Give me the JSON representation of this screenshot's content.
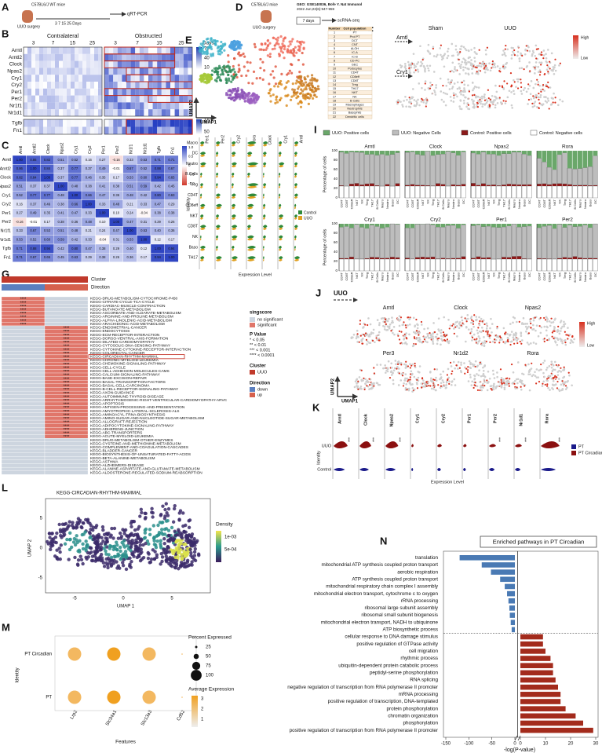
{
  "panel_labels": [
    "A",
    "B",
    "C",
    "D",
    "E",
    "F",
    "G",
    "H",
    "I",
    "J",
    "K",
    "L",
    "M",
    "N"
  ],
  "a": {
    "mice": "C57BL6/J WT mice",
    "surgery": "UUO surgery",
    "assay": "qRT-PCR",
    "timeline": "3   7   15   25 Days"
  },
  "b": {
    "groups": [
      "Contralateral",
      "Obstructed"
    ],
    "days": [
      "3",
      "7",
      "15",
      "25"
    ],
    "days_label": "Days",
    "genes": [
      "Arntl",
      "Arntl2",
      "Clock",
      "Npas2",
      "Cry1",
      "Cry2",
      "Per1",
      "Per2",
      "Nr1f1",
      "Nr1d1",
      "Tgfb",
      "Fn1"
    ],
    "scale_top": [
      "70",
      "40",
      "10"
    ],
    "scale_bottom": [
      "150",
      "50"
    ]
  },
  "c": {
    "genes": [
      "Arntl",
      "Arntl2",
      "Clock",
      "Npas2",
      "Cry1",
      "Cry2",
      "Per1",
      "Per2",
      "Nr1f1",
      "Nr1d1",
      "Tgfb",
      "Fn1"
    ],
    "matrix": [
      [
        "1.00",
        "0.86",
        "0.82",
        "0.51",
        "0.52",
        "0.16",
        "0.27",
        "-0.16",
        "0.33",
        "0.53",
        "0.71",
        "0.71"
      ],
      [
        "0.86",
        "1.00",
        "0.84",
        "0.37",
        "0.77",
        "0.37",
        "0.49",
        "-0.01",
        "0.67",
        "0.52",
        "0.88",
        "0.67"
      ],
      [
        "0.82",
        "0.84",
        "1.00",
        "0.37",
        "0.77",
        "0.46",
        "0.35",
        "0.17",
        "0.53",
        "0.60",
        "0.94",
        "0.65"
      ],
      [
        "0.51",
        "0.37",
        "0.37",
        "1.00",
        "0.48",
        "0.38",
        "0.41",
        "0.38",
        "0.51",
        "0.59",
        "0.42",
        "0.45"
      ],
      [
        "0.52",
        "0.77",
        "0.77",
        "0.48",
        "1.00",
        "0.66",
        "0.47",
        "0.36",
        "0.48",
        "0.42",
        "0.80",
        "0.63"
      ],
      [
        "0.16",
        "0.37",
        "0.46",
        "0.38",
        "0.66",
        "1.00",
        "0.33",
        "0.48",
        "0.21",
        "0.33",
        "0.47",
        "0.29"
      ],
      [
        "0.27",
        "0.49",
        "0.35",
        "0.41",
        "0.47",
        "0.33",
        "1.00",
        "0.10",
        "0.24",
        "-0.04",
        "0.38",
        "0.38"
      ],
      [
        "-0.16",
        "-0.01",
        "0.17",
        "0.38",
        "0.36",
        "0.48",
        "0.10",
        "1.00",
        "0.47",
        "0.31",
        "0.29",
        "0.26"
      ],
      [
        "0.33",
        "0.67",
        "0.53",
        "0.51",
        "0.48",
        "0.21",
        "0.24",
        "0.47",
        "1.00",
        "0.53",
        "0.40",
        "0.36"
      ],
      [
        "0.53",
        "0.52",
        "0.60",
        "0.59",
        "0.42",
        "0.33",
        "-0.04",
        "0.31",
        "0.53",
        "1.00",
        "0.12",
        "0.17"
      ],
      [
        "0.71",
        "0.88",
        "0.94",
        "0.42",
        "0.80",
        "0.47",
        "0.38",
        "0.29",
        "0.40",
        "0.12",
        "1.00",
        "0.94"
      ],
      [
        "0.71",
        "0.67",
        "0.65",
        "0.45",
        "0.63",
        "0.29",
        "0.38",
        "0.26",
        "0.36",
        "0.17",
        "0.94",
        "1.00"
      ]
    ],
    "scale": [
      "1.0",
      "0.5",
      "0",
      "-0.5",
      "-1.0"
    ]
  },
  "d": {
    "mice": "C57BL6/J mice",
    "geo": "GEO: GSE140036, Bofe Y. Nat Immunol",
    "geo2": "2022 Jun;23(6):947-959",
    "surgery": "UUO surgery",
    "duration": "7 days",
    "assay": "scRNA-seq"
  },
  "e": {
    "axis_x": "UMAP1",
    "axis_y": "UMAP2",
    "table_head": [
      "Number",
      "Cell population"
    ],
    "table": [
      [
        "1",
        "PT"
      ],
      [
        "2",
        "Prol PT"
      ],
      [
        "3",
        "DCT"
      ],
      [
        "4",
        "CNT"
      ],
      [
        "5",
        "ALOH"
      ],
      [
        "6",
        "IC-A"
      ],
      [
        "7",
        "IC-B"
      ],
      [
        "8",
        "CD-PC"
      ],
      [
        "9",
        "GEC"
      ],
      [
        "10",
        "Podocytes"
      ],
      [
        "11",
        "CD4T"
      ],
      [
        "12",
        "CD8eff"
      ],
      [
        "13",
        "CD8T"
      ],
      [
        "14",
        "Treg"
      ],
      [
        "15",
        "TH17"
      ],
      [
        "16",
        "NKT"
      ],
      [
        "17",
        "NK"
      ],
      [
        "18",
        "B Cells"
      ],
      [
        "19",
        "Macrophages"
      ],
      [
        "20",
        "Neutrophils"
      ],
      [
        "21",
        "Basophils"
      ],
      [
        "22",
        "Dendritic cells"
      ]
    ]
  },
  "f": {
    "conditions": [
      "Sham",
      "UUO"
    ],
    "genes": [
      "Arntl",
      "Cry1"
    ],
    "scale": [
      "High",
      "Low"
    ]
  },
  "g": {
    "cluster": "Cluster",
    "direction": "Direction",
    "rows": [
      {
        "pathway": "KEGG-DRUG-METABOLISM-CYTOCHROME-P450",
        "down": "****"
      },
      {
        "pathway": "KEGG-CITRATE-CYCLE-TCA-CYCLE",
        "down": "****"
      },
      {
        "pathway": "KEGG-CARDIAC-MUSCLE-CONTRACTION",
        "down": "****"
      },
      {
        "pathway": "KEGG-BUTANOATE-METABOLISM",
        "down": "****"
      },
      {
        "pathway": "KEGG-ASCORBATE-AND-ALDARATE-METABOLISM",
        "down": "****"
      },
      {
        "pathway": "KEGG-ARGININE-AND-PROLINE-METABOLISM",
        "down": "****"
      },
      {
        "pathway": "KEGG-ALPHA-LINOLENIC-ACID-METABOLISM",
        "down": "****"
      },
      {
        "pathway": "KEGG-ARACHIDONIC-ACID-METABOLISM",
        "down": "****"
      },
      {
        "pathway": "KEGG-ENDOMETRIAL-CANCER",
        "up": "****"
      },
      {
        "pathway": "KEGG-ENDOCYTOSIS",
        "up": "****"
      },
      {
        "pathway": "KEGG-ECM-RECEPTOR-INTERACTION",
        "up": "****"
      },
      {
        "pathway": "KEGG-DORSO-VENTRAL-AXIS-FORMATION",
        "up": "****"
      },
      {
        "pathway": "KEGG-DILATED-CARDIOMYOPATHY",
        "up": "****"
      },
      {
        "pathway": "KEGG-CYTOSOLIC-DNA-SENSING-PATHWAY",
        "up": "****"
      },
      {
        "pathway": "KEGG-CYTOKINE-CYTOKINE-RECEPTOR-INTERACTION",
        "up": "****"
      },
      {
        "pathway": "KEGG-COLORECTAL-CANCER",
        "up": "****"
      },
      {
        "pathway": "KEGG-CIRCADIAN-RHYTHM-MAMMAL",
        "up": "****"
      },
      {
        "pathway": "KEGG-CHRONIC-MYELOID-LEUKEMIA",
        "up": "****"
      },
      {
        "pathway": "KEGG-CHEMOKINE-SIGNALING-PATHWAY",
        "up": "****"
      },
      {
        "pathway": "KEGG-CELL-CYCLE",
        "up": "****"
      },
      {
        "pathway": "KEGG-CELL-ADHESION-MOLECULES-CAMS",
        "up": "****"
      },
      {
        "pathway": "KEGG-CALCIUM-SIGNALING-PATHWAY",
        "up": "****"
      },
      {
        "pathway": "KEGG-BASE-EXCISION-REPAIR",
        "up": "****"
      },
      {
        "pathway": "KEGG-BASAL-TRANSCRIPTION-FACTORS",
        "up": "****"
      },
      {
        "pathway": "KEGG-BASAL-CELL-CARCINOMA",
        "up": "****"
      },
      {
        "pathway": "KEGG-B-CELL-RECEPTOR-SIGNALING-PATHWAY",
        "up": "****"
      },
      {
        "pathway": "KEGG-AXON-GUIDANCE",
        "up": "****"
      },
      {
        "pathway": "KEGG-AUTOIMMUNE-THYROID-DISEASE",
        "up": "****"
      },
      {
        "pathway": "KEGG-ARRHYTHMOGENIC-RIGHT-VENTRICULAR-CARDIOMYOPATHY-ARVC",
        "up": "****"
      },
      {
        "pathway": "KEGG-APOPTOSIS",
        "up": "****"
      },
      {
        "pathway": "KEGG-ANTIGEN-PROCESSING-AND-PRESENTATION",
        "up": "****"
      },
      {
        "pathway": "KEGG-AMYOTROPHIC-LATERAL-SCLEROSIS-ALS",
        "up": "****"
      },
      {
        "pathway": "KEGG-AMINOACYL-TRNA-BIOSYNTHESIS",
        "up": "****"
      },
      {
        "pathway": "KEGG-AMINO-SUGAR-AND-NUCLEOTIDE-SUGAR-METABOLISM",
        "up": "****"
      },
      {
        "pathway": "KEGG-ALLOGRAFT-REJECTION",
        "up": "****"
      },
      {
        "pathway": "KEGG-ADIPOCYTOKINE-SIGNALING-PATHWAY",
        "up": "****"
      },
      {
        "pathway": "KEGG-ADHERENS-JUNCTION",
        "up": "****"
      },
      {
        "pathway": "KEGG-ABC-TRANSPORTERS",
        "up": "****"
      },
      {
        "pathway": "KEGG-ACUTE-MYELOID-LEUKEMIA",
        "up": "****"
      },
      {
        "pathway": "KEGG-DRUG-METABOLISM-OTHER-ENZYMES"
      },
      {
        "pathway": "KEGG-CYSTEINE-AND-METHIONINE-METABOLISM"
      },
      {
        "pathway": "KEGG-COMPLEMENT-AND-COAGULATION-CASCADES"
      },
      {
        "pathway": "KEGG-BLADDER-CANCER"
      },
      {
        "pathway": "KEGG-BIOSYNTHESIS-OF-UNSATURATED-FATTY-ACIDS"
      },
      {
        "pathway": "KEGG-BETA-ALANINE-METABOLISM"
      },
      {
        "pathway": "KEGG-ASTHMA"
      },
      {
        "pathway": "KEGG-ALZHEIMERS-DISEASE"
      },
      {
        "pathway": "KEGG-ALANINE-ASPARTATE-AND-GLUTAMATE-METABOLISM"
      },
      {
        "pathway": "KEGG-ALDOSTERONE-REGULATED-SODIUM-REABSORPTION"
      }
    ],
    "legend": {
      "singscore": "singscore",
      "no_sig": "no significant",
      "sig": "significant",
      "pvalue": "P Value",
      "p": [
        "*  < 0.05",
        "**  < 0.01",
        "***  < 0.001",
        "****  < 0.0001"
      ],
      "cluster": "Cluster",
      "uuo": "UUO",
      "direction": "Direction",
      "down": "down",
      "up": "up"
    }
  },
  "h": {
    "genes": [
      "Per1",
      "Per2",
      "Cry2",
      "Rora",
      "Clock",
      "Cry1",
      "Arntl"
    ],
    "identities": [
      "Macro",
      "DC",
      "Neutro",
      "B Cells",
      "Treg",
      "CD4T",
      "CD8eff",
      "NKT",
      "CD8T",
      "NK",
      "Baso",
      "TH17"
    ],
    "y_label": "Identity",
    "x_label": "Expression Level",
    "legend": [
      "Control",
      "UUO"
    ]
  },
  "i": {
    "legend": [
      "UUO: Positive cells",
      "UUO: Negative Cells",
      "Control: Positive cells",
      "Control: Negative cells"
    ],
    "genes": [
      "Arntl",
      "Clock",
      "Npas2",
      "Rora",
      "Cry1",
      "Cry2",
      "Per1",
      "Per2"
    ],
    "y_label": "Percentage of cells",
    "yticks": [
      "0",
      "20",
      "40",
      "60",
      "80",
      "100"
    ],
    "celltypes": [
      "CD4T",
      "CD8T",
      "CD8eff",
      "NKT",
      "NK",
      "Treg",
      "TH17",
      "B Cells",
      "Macro",
      "Neutro",
      "Baso",
      "DC"
    ]
  },
  "j": {
    "condition": "UUO",
    "genes": [
      "Arntl",
      "Clock",
      "Npas2",
      "Per3",
      "Nr1d2",
      "Rora"
    ],
    "scale": [
      "High",
      "Low"
    ],
    "axis_x": "UMAP1",
    "axis_y": "UMAP2"
  },
  "k": {
    "genes": [
      "Arntl",
      "Clock",
      "Npas2",
      "Cry1",
      "Cry2",
      "Per1",
      "Per2",
      "Nr1d1",
      "Rora"
    ],
    "groups": [
      "UUO",
      "Control"
    ],
    "legend": [
      "PT",
      "PT Circadian"
    ],
    "y_label": "Identity",
    "x_label": "Expression Level",
    "stars": "***"
  },
  "l": {
    "title": "KEGG-CIRCADIAN-RHYTHM-MAMMAL",
    "legend_title": "Density",
    "legend_ticks": [
      "1e-03",
      "5e-04"
    ],
    "axis_x": "UMAP 1",
    "axis_y": "UMAP 2",
    "xticks": [
      "-5",
      "0",
      "5"
    ],
    "yticks": [
      "5",
      "0",
      "-5"
    ]
  },
  "m": {
    "identities": [
      "PT Circadian",
      "PT"
    ],
    "features": [
      "Lrp2",
      "Slc34a1",
      "Slc13a3",
      "Cd52"
    ],
    "y_label": "Identity",
    "x_label": "Features",
    "size_title": "Percent Expressed",
    "sizes": [
      "25",
      "50",
      "75",
      "100"
    ],
    "color_title": "Average Expression",
    "colors": [
      "3",
      "2",
      "1"
    ]
  },
  "chart_data": {
    "type": "bar",
    "orientation": "horizontal",
    "title": "Enriched pathways in PT Circadian",
    "xlabel": "-log(P-value)",
    "categories": [
      "translation",
      "mitochondrial ATP synthesis coupled proton transport",
      "aerobic respiration",
      "ATP synthesis coupled proton transport",
      "mitochondrial respiratory chain complex I assembly",
      "mitochondrial electron transport, cytochrome c to oxygen",
      "rRNA processing",
      "ribosomal large subunit assembly",
      "ribosomal small subunit biogenesis",
      "mitochondrial electron transport, NADH to ubiquinone",
      "ATP biosynthetic process",
      "cellular response to DNA damage stimulus",
      "positive regulation of GTPase activity",
      "cell migration",
      "rhythmic process",
      "ubiquitin-dependent protein catabolic process",
      "peptidyl-serine phosphorylation",
      "RNA splicing",
      "negative regulation of transcription from RNA polymerase II promoter",
      "mRNA processing",
      "positive regulation of transcription, DNA-templated",
      "protein phosphorylation",
      "chromatin organization",
      "phosphorylation",
      "positive regulation of transcription from RNA polymerase II promoter"
    ],
    "values": [
      -120,
      -72,
      -52,
      -32,
      -22,
      -17,
      -14,
      -12,
      -11,
      -9,
      -7,
      9,
      9,
      10,
      12,
      13,
      13,
      14,
      15,
      16,
      16,
      18,
      22,
      25,
      29
    ],
    "colors": {
      "negative": "#4a7ab4",
      "positive": "#a32b1c"
    },
    "x_segments": [
      {
        "xlim": [
          -150,
          0
        ],
        "xticks": [
          -150,
          -100,
          -50,
          0
        ]
      },
      {
        "xlim": [
          0,
          30
        ],
        "xticks": [
          0,
          10,
          20,
          30
        ]
      }
    ]
  }
}
